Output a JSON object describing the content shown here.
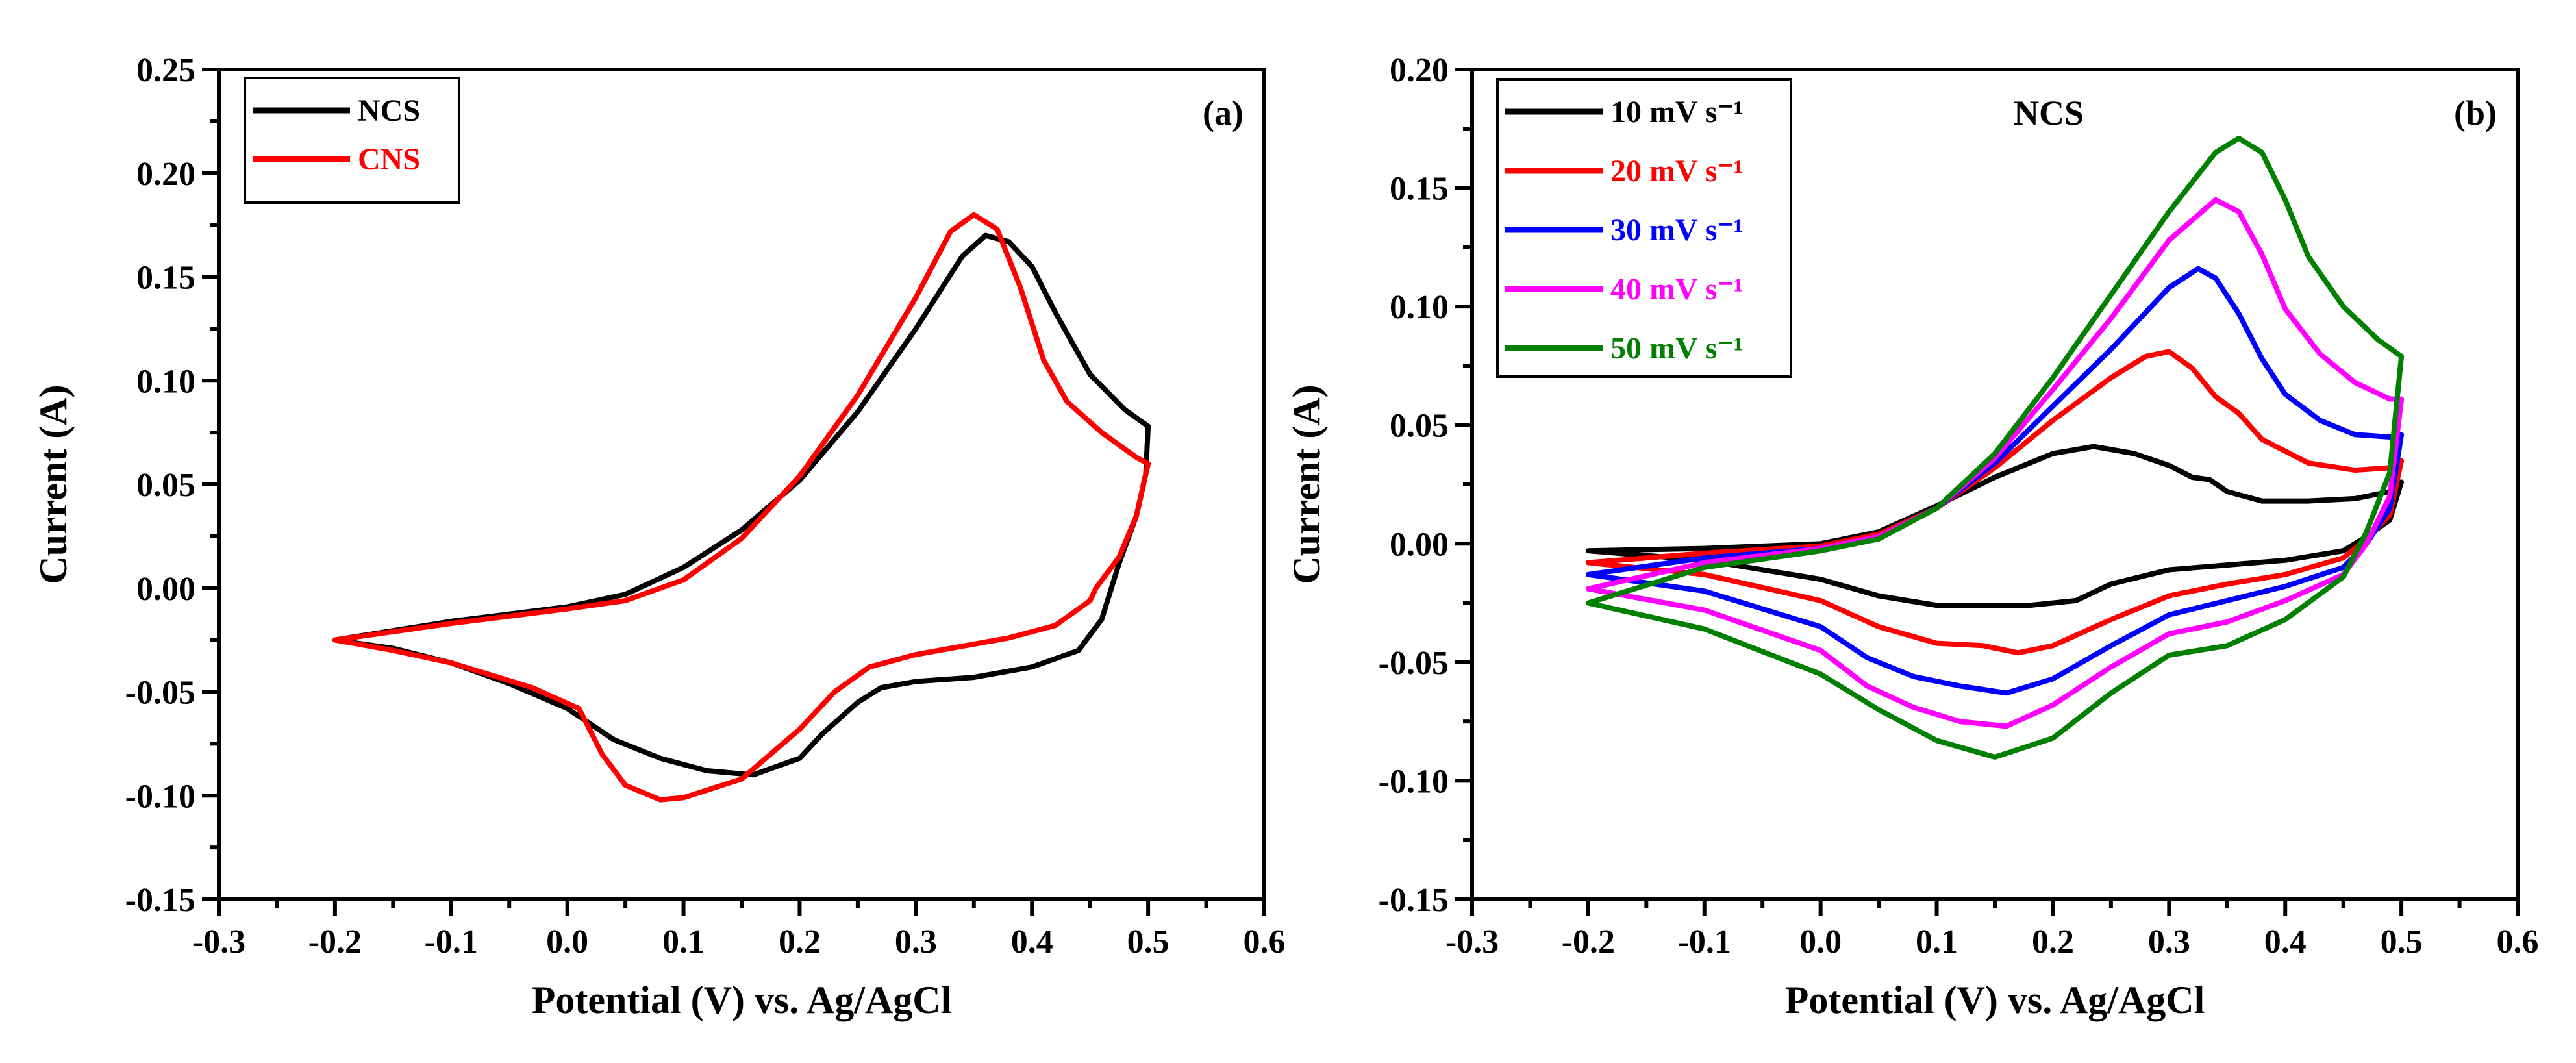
{
  "chart_data": [
    {
      "type": "line",
      "panel_label": "(a)",
      "xlabel": "Potential (V) vs. Ag/AgCl",
      "ylabel": "Current (A)",
      "xlim": [
        -0.3,
        0.6
      ],
      "ylim": [
        -0.15,
        0.25
      ],
      "xticks": [
        -0.3,
        -0.2,
        -0.1,
        0.0,
        0.1,
        0.2,
        0.3,
        0.4,
        0.5,
        0.6
      ],
      "xtick_labels": [
        "-0.3",
        "-0.2",
        "-0.1",
        "0.0",
        "0.1",
        "0.2",
        "0.3",
        "0.4",
        "0.5",
        "0.6"
      ],
      "yticks": [
        -0.15,
        -0.1,
        -0.05,
        0.0,
        0.05,
        0.1,
        0.15,
        0.2,
        0.25
      ],
      "ytick_labels": [
        "-0.15",
        "-0.10",
        "-0.05",
        "0.00",
        "0.05",
        "0.10",
        "0.15",
        "0.20",
        "0.25"
      ],
      "legend": {
        "position": "top-left"
      },
      "series": [
        {
          "name": "NCS",
          "color": "#000000",
          "points": [
            [
              -0.2,
              -0.025
            ],
            [
              -0.1,
              -0.016
            ],
            [
              0.0,
              -0.009
            ],
            [
              0.05,
              -0.003
            ],
            [
              0.1,
              0.01
            ],
            [
              0.15,
              0.028
            ],
            [
              0.2,
              0.052
            ],
            [
              0.25,
              0.085
            ],
            [
              0.3,
              0.125
            ],
            [
              0.34,
              0.16
            ],
            [
              0.36,
              0.17
            ],
            [
              0.38,
              0.167
            ],
            [
              0.4,
              0.155
            ],
            [
              0.42,
              0.133
            ],
            [
              0.45,
              0.103
            ],
            [
              0.48,
              0.086
            ],
            [
              0.5,
              0.078
            ],
            [
              0.498,
              0.055
            ],
            [
              0.49,
              0.035
            ],
            [
              0.475,
              0.012
            ],
            [
              0.46,
              -0.015
            ],
            [
              0.44,
              -0.03
            ],
            [
              0.4,
              -0.038
            ],
            [
              0.35,
              -0.043
            ],
            [
              0.3,
              -0.045
            ],
            [
              0.27,
              -0.048
            ],
            [
              0.25,
              -0.055
            ],
            [
              0.22,
              -0.07
            ],
            [
              0.2,
              -0.082
            ],
            [
              0.16,
              -0.09
            ],
            [
              0.12,
              -0.088
            ],
            [
              0.08,
              -0.082
            ],
            [
              0.04,
              -0.073
            ],
            [
              0.0,
              -0.058
            ],
            [
              -0.05,
              -0.046
            ],
            [
              -0.1,
              -0.036
            ],
            [
              -0.15,
              -0.029
            ],
            [
              -0.2,
              -0.025
            ]
          ]
        },
        {
          "name": "CNS",
          "color": "#ff0000",
          "points": [
            [
              -0.2,
              -0.025
            ],
            [
              -0.1,
              -0.017
            ],
            [
              0.0,
              -0.01
            ],
            [
              0.05,
              -0.006
            ],
            [
              0.1,
              0.004
            ],
            [
              0.15,
              0.024
            ],
            [
              0.2,
              0.054
            ],
            [
              0.25,
              0.093
            ],
            [
              0.3,
              0.14
            ],
            [
              0.33,
              0.172
            ],
            [
              0.35,
              0.18
            ],
            [
              0.37,
              0.173
            ],
            [
              0.39,
              0.145
            ],
            [
              0.41,
              0.11
            ],
            [
              0.43,
              0.09
            ],
            [
              0.46,
              0.075
            ],
            [
              0.49,
              0.063
            ],
            [
              0.5,
              0.06
            ],
            [
              0.49,
              0.035
            ],
            [
              0.475,
              0.015
            ],
            [
              0.455,
              0.0
            ],
            [
              0.45,
              -0.006
            ],
            [
              0.42,
              -0.018
            ],
            [
              0.38,
              -0.024
            ],
            [
              0.3,
              -0.032
            ],
            [
              0.26,
              -0.038
            ],
            [
              0.23,
              -0.05
            ],
            [
              0.2,
              -0.068
            ],
            [
              0.15,
              -0.092
            ],
            [
              0.1,
              -0.101
            ],
            [
              0.08,
              -0.102
            ],
            [
              0.05,
              -0.095
            ],
            [
              0.03,
              -0.08
            ],
            [
              0.01,
              -0.058
            ],
            [
              -0.03,
              -0.048
            ],
            [
              -0.1,
              -0.036
            ],
            [
              -0.15,
              -0.03
            ],
            [
              -0.2,
              -0.025
            ]
          ]
        }
      ]
    },
    {
      "type": "line",
      "panel_label": "(b)",
      "title": "NCS",
      "xlabel": "Potential (V) vs. Ag/AgCl",
      "ylabel": "Current (A)",
      "xlim": [
        -0.3,
        0.6
      ],
      "ylim": [
        -0.15,
        0.2
      ],
      "xticks": [
        -0.3,
        -0.2,
        -0.1,
        0.0,
        0.1,
        0.2,
        0.3,
        0.4,
        0.5,
        0.6
      ],
      "xtick_labels": [
        "-0.3",
        "-0.2",
        "-0.1",
        "0.0",
        "0.1",
        "0.2",
        "0.3",
        "0.4",
        "0.5",
        "0.6"
      ],
      "yticks": [
        -0.15,
        -0.1,
        -0.05,
        0.0,
        0.05,
        0.1,
        0.15,
        0.2
      ],
      "ytick_labels": [
        "-0.15",
        "-0.10",
        "-0.05",
        "0.00",
        "0.05",
        "0.10",
        "0.15",
        "0.20"
      ],
      "legend": {
        "position": "top-left"
      },
      "series": [
        {
          "name": "10 mV s⁻¹",
          "color": "#000000",
          "points": [
            [
              -0.2,
              -0.003
            ],
            [
              -0.1,
              -0.002
            ],
            [
              0.0,
              0.0
            ],
            [
              0.05,
              0.005
            ],
            [
              0.1,
              0.016
            ],
            [
              0.15,
              0.028
            ],
            [
              0.2,
              0.038
            ],
            [
              0.235,
              0.041
            ],
            [
              0.27,
              0.038
            ],
            [
              0.3,
              0.033
            ],
            [
              0.32,
              0.028
            ],
            [
              0.335,
              0.027
            ],
            [
              0.35,
              0.022
            ],
            [
              0.38,
              0.018
            ],
            [
              0.42,
              0.018
            ],
            [
              0.46,
              0.019
            ],
            [
              0.49,
              0.022
            ],
            [
              0.5,
              0.026
            ],
            [
              0.49,
              0.01
            ],
            [
              0.47,
              0.003
            ],
            [
              0.45,
              -0.003
            ],
            [
              0.4,
              -0.007
            ],
            [
              0.35,
              -0.009
            ],
            [
              0.3,
              -0.011
            ],
            [
              0.25,
              -0.017
            ],
            [
              0.22,
              -0.024
            ],
            [
              0.18,
              -0.026
            ],
            [
              0.1,
              -0.026
            ],
            [
              0.05,
              -0.022
            ],
            [
              0.0,
              -0.015
            ],
            [
              -0.1,
              -0.007
            ],
            [
              -0.2,
              -0.003
            ]
          ]
        },
        {
          "name": "20 mV s⁻¹",
          "color": "#ff0000",
          "points": [
            [
              -0.2,
              -0.008
            ],
            [
              -0.1,
              -0.004
            ],
            [
              0.0,
              -0.001
            ],
            [
              0.05,
              0.004
            ],
            [
              0.1,
              0.015
            ],
            [
              0.15,
              0.032
            ],
            [
              0.2,
              0.052
            ],
            [
              0.25,
              0.07
            ],
            [
              0.28,
              0.079
            ],
            [
              0.3,
              0.081
            ],
            [
              0.32,
              0.074
            ],
            [
              0.34,
              0.062
            ],
            [
              0.36,
              0.055
            ],
            [
              0.38,
              0.044
            ],
            [
              0.42,
              0.034
            ],
            [
              0.46,
              0.031
            ],
            [
              0.49,
              0.032
            ],
            [
              0.5,
              0.035
            ],
            [
              0.49,
              0.012
            ],
            [
              0.47,
              0.002
            ],
            [
              0.45,
              -0.006
            ],
            [
              0.4,
              -0.013
            ],
            [
              0.35,
              -0.017
            ],
            [
              0.3,
              -0.022
            ],
            [
              0.25,
              -0.032
            ],
            [
              0.2,
              -0.043
            ],
            [
              0.17,
              -0.046
            ],
            [
              0.14,
              -0.043
            ],
            [
              0.1,
              -0.042
            ],
            [
              0.05,
              -0.035
            ],
            [
              0.0,
              -0.024
            ],
            [
              -0.1,
              -0.013
            ],
            [
              -0.2,
              -0.008
            ]
          ]
        },
        {
          "name": "30 mV s⁻¹",
          "color": "#0000ff",
          "points": [
            [
              -0.2,
              -0.013
            ],
            [
              -0.1,
              -0.006
            ],
            [
              0.0,
              -0.002
            ],
            [
              0.05,
              0.003
            ],
            [
              0.1,
              0.015
            ],
            [
              0.15,
              0.034
            ],
            [
              0.2,
              0.058
            ],
            [
              0.25,
              0.082
            ],
            [
              0.3,
              0.108
            ],
            [
              0.325,
              0.116
            ],
            [
              0.34,
              0.112
            ],
            [
              0.36,
              0.097
            ],
            [
              0.38,
              0.078
            ],
            [
              0.4,
              0.063
            ],
            [
              0.43,
              0.052
            ],
            [
              0.46,
              0.046
            ],
            [
              0.49,
              0.045
            ],
            [
              0.5,
              0.046
            ],
            [
              0.49,
              0.015
            ],
            [
              0.47,
              0.0
            ],
            [
              0.45,
              -0.01
            ],
            [
              0.4,
              -0.018
            ],
            [
              0.35,
              -0.024
            ],
            [
              0.3,
              -0.03
            ],
            [
              0.25,
              -0.043
            ],
            [
              0.2,
              -0.057
            ],
            [
              0.16,
              -0.063
            ],
            [
              0.12,
              -0.06
            ],
            [
              0.08,
              -0.056
            ],
            [
              0.04,
              -0.048
            ],
            [
              0.0,
              -0.035
            ],
            [
              -0.1,
              -0.02
            ],
            [
              -0.2,
              -0.013
            ]
          ]
        },
        {
          "name": "40 mV s⁻¹",
          "color": "#ff00ff",
          "points": [
            [
              -0.2,
              -0.019
            ],
            [
              -0.1,
              -0.008
            ],
            [
              0.0,
              -0.002
            ],
            [
              0.05,
              0.003
            ],
            [
              0.1,
              0.015
            ],
            [
              0.15,
              0.036
            ],
            [
              0.2,
              0.065
            ],
            [
              0.25,
              0.095
            ],
            [
              0.3,
              0.128
            ],
            [
              0.34,
              0.145
            ],
            [
              0.36,
              0.14
            ],
            [
              0.38,
              0.122
            ],
            [
              0.4,
              0.099
            ],
            [
              0.43,
              0.08
            ],
            [
              0.46,
              0.068
            ],
            [
              0.49,
              0.061
            ],
            [
              0.5,
              0.061
            ],
            [
              0.49,
              0.02
            ],
            [
              0.47,
              0.0
            ],
            [
              0.45,
              -0.013
            ],
            [
              0.4,
              -0.024
            ],
            [
              0.35,
              -0.033
            ],
            [
              0.3,
              -0.038
            ],
            [
              0.25,
              -0.052
            ],
            [
              0.2,
              -0.068
            ],
            [
              0.16,
              -0.077
            ],
            [
              0.12,
              -0.075
            ],
            [
              0.08,
              -0.069
            ],
            [
              0.04,
              -0.06
            ],
            [
              0.0,
              -0.045
            ],
            [
              -0.1,
              -0.028
            ],
            [
              -0.2,
              -0.019
            ]
          ]
        },
        {
          "name": "50 mV s⁻¹",
          "color": "#007f00",
          "points": [
            [
              -0.2,
              -0.025
            ],
            [
              -0.1,
              -0.01
            ],
            [
              0.0,
              -0.003
            ],
            [
              0.05,
              0.002
            ],
            [
              0.1,
              0.015
            ],
            [
              0.15,
              0.038
            ],
            [
              0.2,
              0.07
            ],
            [
              0.25,
              0.105
            ],
            [
              0.3,
              0.14
            ],
            [
              0.34,
              0.165
            ],
            [
              0.36,
              0.171
            ],
            [
              0.38,
              0.165
            ],
            [
              0.4,
              0.145
            ],
            [
              0.42,
              0.121
            ],
            [
              0.45,
              0.1
            ],
            [
              0.48,
              0.086
            ],
            [
              0.5,
              0.079
            ],
            [
              0.49,
              0.03
            ],
            [
              0.47,
              0.005
            ],
            [
              0.45,
              -0.014
            ],
            [
              0.4,
              -0.032
            ],
            [
              0.35,
              -0.043
            ],
            [
              0.3,
              -0.047
            ],
            [
              0.25,
              -0.063
            ],
            [
              0.2,
              -0.082
            ],
            [
              0.15,
              -0.09
            ],
            [
              0.1,
              -0.083
            ],
            [
              0.05,
              -0.07
            ],
            [
              0.0,
              -0.055
            ],
            [
              -0.1,
              -0.036
            ],
            [
              -0.2,
              -0.025
            ]
          ]
        }
      ]
    }
  ]
}
